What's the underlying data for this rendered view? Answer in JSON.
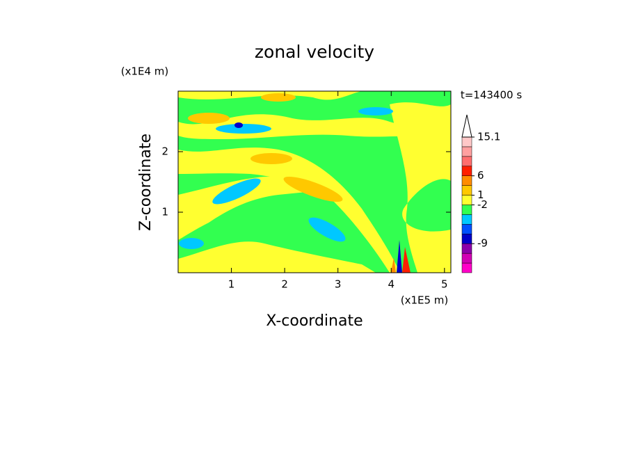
{
  "chart_data": {
    "type": "contour",
    "title": "zonal velocity",
    "x_label": "X-coordinate",
    "y_label": "Z-coordinate",
    "x_unit": "(x1E5 m)",
    "y_unit": "(x1E4 m)",
    "annotation": "t=143400 s",
    "xlim": [
      0,
      5.12
    ],
    "ylim": [
      0,
      3
    ],
    "xticks": [
      1,
      2,
      3,
      4,
      5
    ],
    "yticks": [
      1,
      2
    ],
    "colorbar": {
      "levels": [
        -18,
        -15,
        -12,
        -9,
        -6,
        -4,
        -3,
        -2,
        1,
        3,
        6,
        8.3,
        10.6,
        12.8,
        15.1
      ],
      "colors": [
        "#ff00c8",
        "#d200b4",
        "#8c00aa",
        "#0000c8",
        "#0050ff",
        "#00c8ff",
        "#32ff50",
        "#ffff30",
        "#ffc800",
        "#ff8c00",
        "#ff1e00",
        "#ff6e6e",
        "#ffa0a0",
        "#ffc8c8"
      ],
      "ticks": [
        15.1,
        6,
        1,
        -2,
        -9
      ]
    }
  }
}
